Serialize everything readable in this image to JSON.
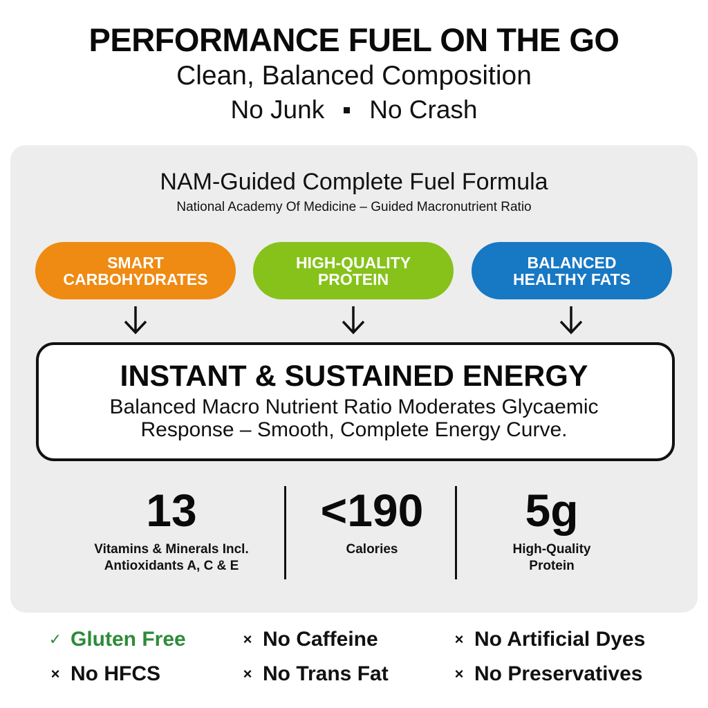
{
  "header": {
    "headline": "PERFORMANCE FUEL ON THE GO",
    "subhead": "Clean, Balanced Composition",
    "tagline_left": "No Junk",
    "tagline_right": "No Crash"
  },
  "formula": {
    "title": "NAM-Guided Complete Fuel Formula",
    "subtitle": "National Academy Of Medicine – Guided Macronutrient Ratio"
  },
  "pills": [
    {
      "line1": "SMART",
      "line2": "CARBOHYDRATES",
      "color": "#ef8a12"
    },
    {
      "line1": "HIGH-QUALITY",
      "line2": "PROTEIN",
      "color": "#86c21a"
    },
    {
      "line1": "BALANCED",
      "line2": "HEALTHY FATS",
      "color": "#1778c4"
    }
  ],
  "energy": {
    "title": "INSTANT & SUSTAINED ENERGY",
    "line1": "Balanced Macro Nutrient Ratio Moderates Glycaemic",
    "line2": "Response – Smooth, Complete Energy Curve."
  },
  "stats": [
    {
      "value": "13",
      "label1": "Vitamins & Minerals Incl.",
      "label2": "Antioxidants A, C & E"
    },
    {
      "value": "<190",
      "label1": "Calories",
      "label2": ""
    },
    {
      "value": "5g",
      "label1": "High-Quality",
      "label2": "Protein"
    }
  ],
  "claims": [
    {
      "mark": "✓",
      "text": "Gluten Free",
      "positive": true
    },
    {
      "mark": "×",
      "text": "No Caffeine",
      "positive": false
    },
    {
      "mark": "×",
      "text": "No Artificial Dyes",
      "positive": false
    },
    {
      "mark": "×",
      "text": "No HFCS",
      "positive": false
    },
    {
      "mark": "×",
      "text": "No Trans Fat",
      "positive": false
    },
    {
      "mark": "×",
      "text": "No Preservatives",
      "positive": false
    }
  ],
  "colors": {
    "panel": "#ededed",
    "positive": "#2e8b3a",
    "text": "#111111"
  }
}
